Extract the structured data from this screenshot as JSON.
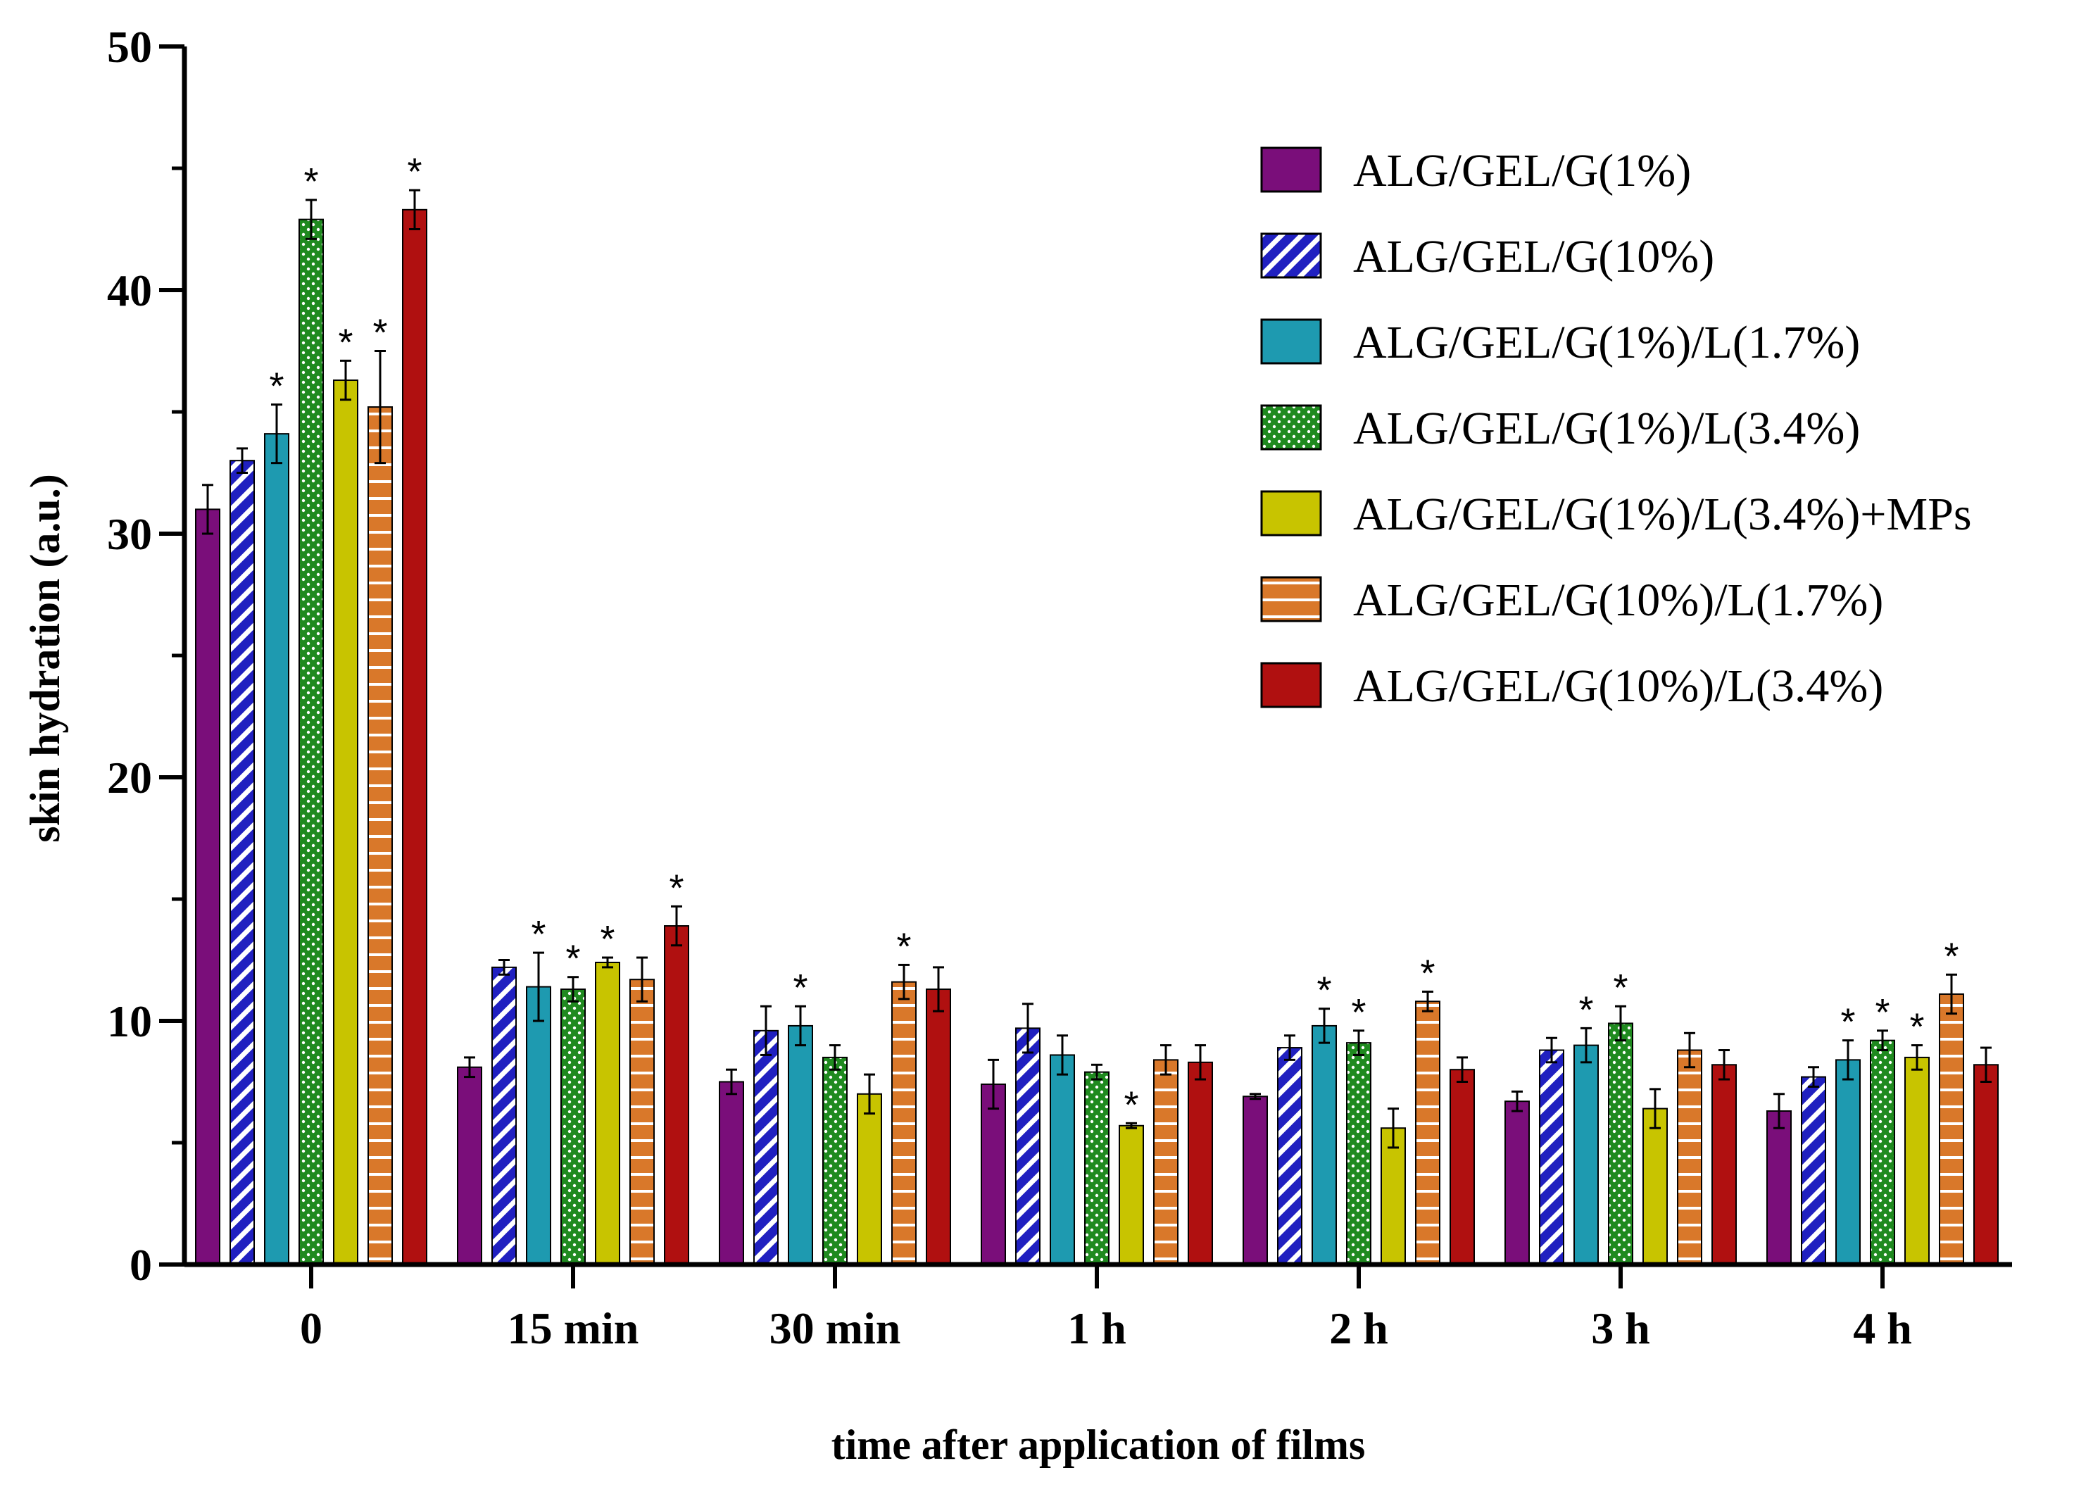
{
  "chart_data": {
    "type": "bar",
    "title": "",
    "xlabel": "time after application of films",
    "ylabel": "skin hydration (a.u.)",
    "ylim": [
      0,
      50
    ],
    "yticks": [
      "0",
      "10",
      "20",
      "30",
      "40",
      "50"
    ],
    "categories": [
      "0",
      "15 min",
      "30 min",
      "1 h",
      "2 h",
      "3 h",
      "4 h"
    ],
    "legend_position": "top-right",
    "significance_marker": "*",
    "series": [
      {
        "name": "ALG/GEL/G(1%)",
        "color": "#7a0e7a",
        "pattern": "solid",
        "values": [
          31.0,
          8.1,
          7.5,
          7.4,
          6.9,
          6.7,
          6.3
        ],
        "errors": [
          1.0,
          0.4,
          0.5,
          1.0,
          0.1,
          0.4,
          0.7
        ],
        "sig": [
          false,
          false,
          false,
          false,
          false,
          false,
          false
        ]
      },
      {
        "name": "ALG/GEL/G(10%)",
        "color": "#2020c0",
        "pattern": "diagonal",
        "values": [
          33.0,
          12.2,
          9.6,
          9.7,
          8.9,
          8.8,
          7.7
        ],
        "errors": [
          0.5,
          0.3,
          1.0,
          1.0,
          0.5,
          0.5,
          0.4
        ],
        "sig": [
          false,
          false,
          false,
          false,
          false,
          false,
          false
        ]
      },
      {
        "name": "ALG/GEL/G(1%)/L(1.7%)",
        "color": "#1e9ab0",
        "pattern": "solid",
        "values": [
          34.1,
          11.4,
          9.8,
          8.6,
          9.8,
          9.0,
          8.4
        ],
        "errors": [
          1.2,
          1.4,
          0.8,
          0.8,
          0.7,
          0.7,
          0.8
        ],
        "sig": [
          true,
          true,
          true,
          false,
          true,
          true,
          true
        ]
      },
      {
        "name": "ALG/GEL/G(1%)/L(3.4%)",
        "color": "#1f8a1f",
        "pattern": "dots",
        "values": [
          42.9,
          11.3,
          8.5,
          7.9,
          9.1,
          9.9,
          9.2
        ],
        "errors": [
          0.8,
          0.5,
          0.5,
          0.3,
          0.5,
          0.7,
          0.4
        ],
        "sig": [
          true,
          true,
          false,
          false,
          true,
          true,
          true
        ]
      },
      {
        "name": "ALG/GEL/G(1%)/L(3.4%)+MPs",
        "color": "#c8c400",
        "pattern": "solid",
        "values": [
          36.3,
          12.4,
          7.0,
          5.7,
          5.6,
          6.4,
          8.5
        ],
        "errors": [
          0.8,
          0.2,
          0.8,
          0.1,
          0.8,
          0.8,
          0.5
        ],
        "sig": [
          true,
          true,
          false,
          true,
          false,
          false,
          true
        ]
      },
      {
        "name": "ALG/GEL/G(10%)/L(1.7%)",
        "color": "#d9782a",
        "pattern": "horizontal",
        "values": [
          35.2,
          11.7,
          11.6,
          8.4,
          10.8,
          8.8,
          11.1
        ],
        "errors": [
          2.3,
          0.9,
          0.7,
          0.6,
          0.4,
          0.7,
          0.8
        ],
        "sig": [
          true,
          false,
          true,
          false,
          true,
          false,
          true
        ]
      },
      {
        "name": "ALG/GEL/G(10%)/L(3.4%)",
        "color": "#b01010",
        "pattern": "solid",
        "values": [
          43.3,
          13.9,
          11.3,
          8.3,
          8.0,
          8.2,
          8.2
        ],
        "errors": [
          0.8,
          0.8,
          0.9,
          0.7,
          0.5,
          0.6,
          0.7
        ],
        "sig": [
          true,
          true,
          false,
          false,
          false,
          false,
          false
        ]
      }
    ]
  }
}
